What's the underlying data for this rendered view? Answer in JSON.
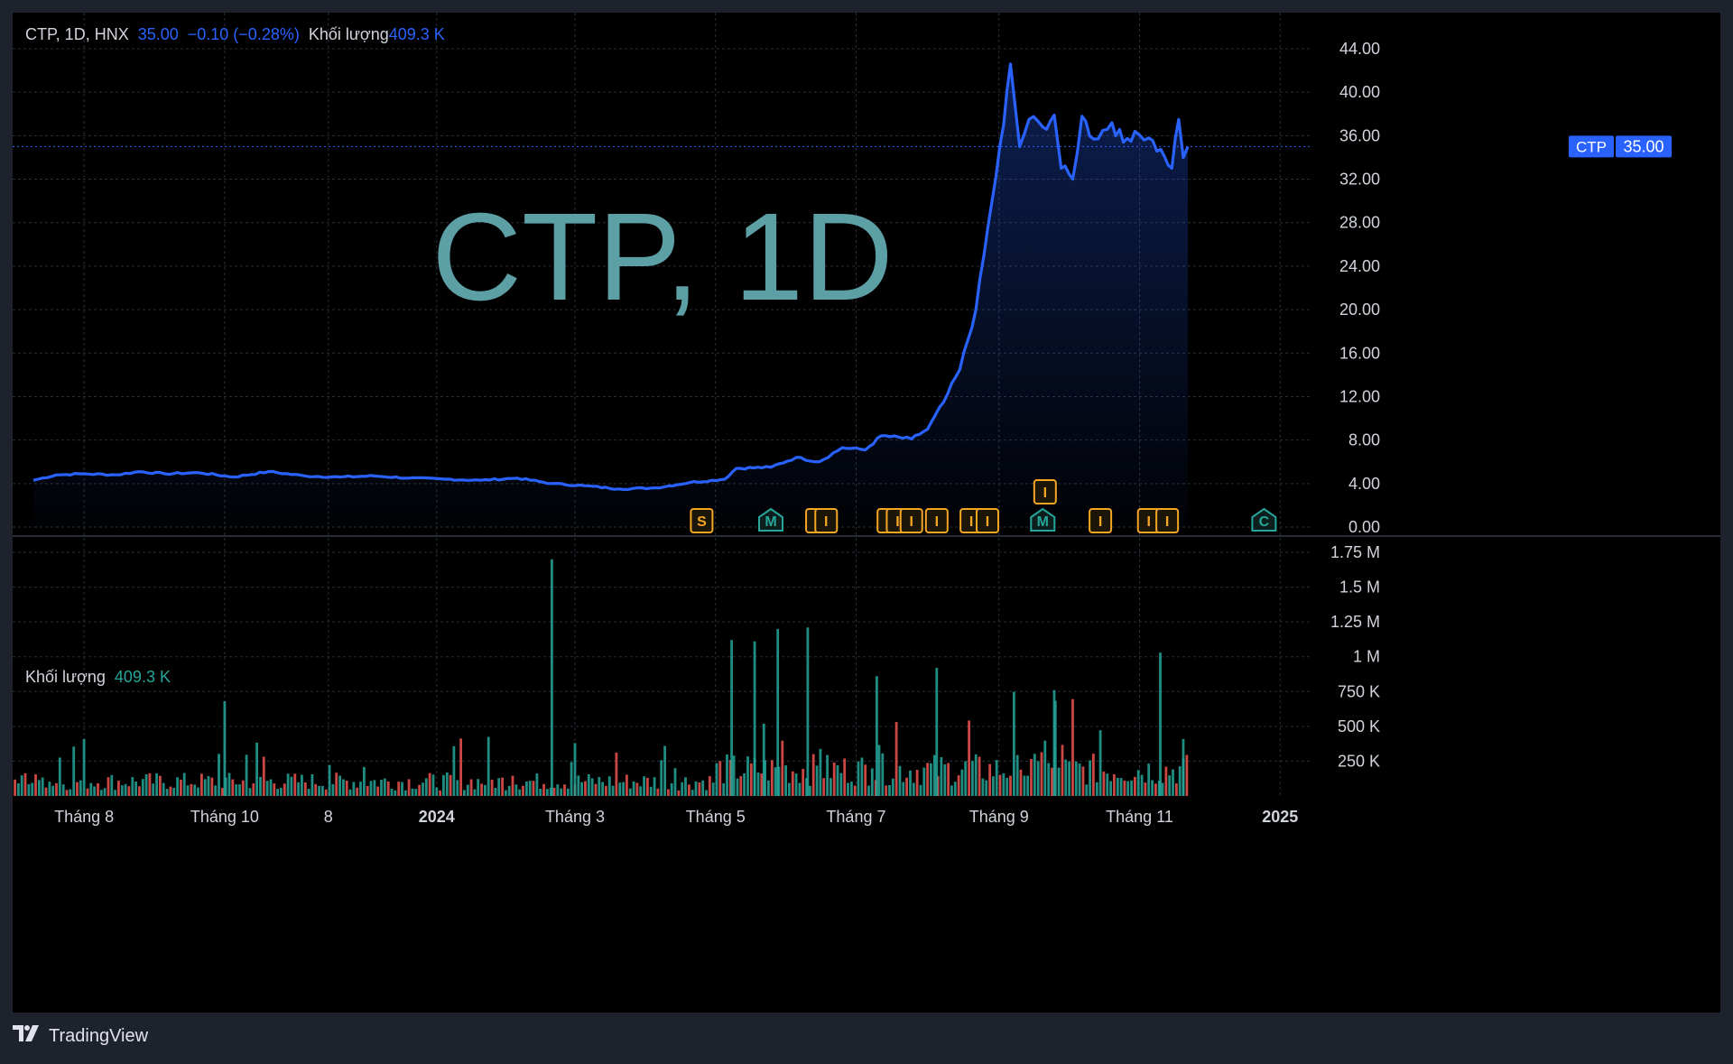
{
  "header": {
    "symbol": "CTP, 1D, HNX",
    "last": "35.00",
    "change": "−0.10 (−0.28%)",
    "volume_label": "Khối lượng",
    "volume_value": "409.3 K"
  },
  "volume_pane": {
    "label": "Khối lượng",
    "value": "409.3 K"
  },
  "watermark": "CTP, 1D",
  "price_tag": {
    "symbol": "CTP",
    "price": "35.00"
  },
  "footer": {
    "brand": "TradingView"
  },
  "colors": {
    "line": "#2962ff",
    "up_volume": "#26a69a",
    "down_volume": "#ef5350",
    "watermark": "#5c9fa5",
    "event_orange": "#f5a623",
    "event_green": "#26a69a"
  },
  "chart_data": {
    "type": "line",
    "title": "CTP, 1D",
    "price_axis": {
      "ticks": [
        "44.00",
        "40.00",
        "36.00",
        "32.00",
        "28.00",
        "24.00",
        "20.00",
        "16.00",
        "12.00",
        "8.00",
        "4.00",
        "0.00"
      ],
      "ylim": [
        0,
        44
      ]
    },
    "volume_axis": {
      "ticks": [
        "1.75 M",
        "1.5 M",
        "1.25 M",
        "1 M",
        "750 K",
        "500 K",
        "250 K"
      ],
      "ylim": [
        0,
        1750000
      ]
    },
    "x_ticks": [
      {
        "label": "Tháng 8",
        "bold": false
      },
      {
        "label": "Tháng 10",
        "bold": false
      },
      {
        "label": "8",
        "bold": false
      },
      {
        "label": "2024",
        "bold": true
      },
      {
        "label": "Tháng 3",
        "bold": false
      },
      {
        "label": "Tháng 5",
        "bold": false
      },
      {
        "label": "Tháng 7",
        "bold": false
      },
      {
        "label": "Tháng 9",
        "bold": false
      },
      {
        "label": "Tháng 11",
        "bold": false
      },
      {
        "label": "2025",
        "bold": true
      }
    ],
    "series": [
      {
        "name": "CTP",
        "values": [
          {
            "x": "2023-07-10",
            "y": 4.3
          },
          {
            "x": "2023-07-20",
            "y": 4.8
          },
          {
            "x": "2023-08-01",
            "y": 4.9
          },
          {
            "x": "2023-08-15",
            "y": 4.8
          },
          {
            "x": "2023-08-25",
            "y": 5.1
          },
          {
            "x": "2023-09-05",
            "y": 4.9
          },
          {
            "x": "2023-09-20",
            "y": 5.0
          },
          {
            "x": "2023-10-05",
            "y": 4.6
          },
          {
            "x": "2023-10-20",
            "y": 5.1
          },
          {
            "x": "2023-11-05",
            "y": 4.7
          },
          {
            "x": "2023-11-20",
            "y": 4.6
          },
          {
            "x": "2023-12-05",
            "y": 4.7
          },
          {
            "x": "2023-12-20",
            "y": 4.5
          },
          {
            "x": "2024-01-05",
            "y": 4.4
          },
          {
            "x": "2024-01-20",
            "y": 4.3
          },
          {
            "x": "2024-02-05",
            "y": 4.5
          },
          {
            "x": "2024-02-20",
            "y": 4.0
          },
          {
            "x": "2024-03-05",
            "y": 3.8
          },
          {
            "x": "2024-03-20",
            "y": 3.5
          },
          {
            "x": "2024-04-05",
            "y": 3.6
          },
          {
            "x": "2024-04-20",
            "y": 4.1
          },
          {
            "x": "2024-05-05",
            "y": 4.4
          },
          {
            "x": "2024-05-10",
            "y": 5.4
          },
          {
            "x": "2024-05-25",
            "y": 5.5
          },
          {
            "x": "2024-06-05",
            "y": 6.4
          },
          {
            "x": "2024-06-15",
            "y": 6.0
          },
          {
            "x": "2024-06-25",
            "y": 7.3
          },
          {
            "x": "2024-07-05",
            "y": 7.1
          },
          {
            "x": "2024-07-12",
            "y": 8.4
          },
          {
            "x": "2024-07-25",
            "y": 8.1
          },
          {
            "x": "2024-08-01",
            "y": 9.0
          },
          {
            "x": "2024-08-08",
            "y": 11.5
          },
          {
            "x": "2024-08-15",
            "y": 14.5
          },
          {
            "x": "2024-08-22",
            "y": 20.0
          },
          {
            "x": "2024-08-29",
            "y": 30.0
          },
          {
            "x": "2024-09-03",
            "y": 37.0
          },
          {
            "x": "2024-09-06",
            "y": 42.6
          },
          {
            "x": "2024-09-10",
            "y": 35.0
          },
          {
            "x": "2024-09-14",
            "y": 37.5
          },
          {
            "x": "2024-09-20",
            "y": 36.8
          },
          {
            "x": "2024-09-25",
            "y": 37.9
          },
          {
            "x": "2024-09-28",
            "y": 33.0
          },
          {
            "x": "2024-10-03",
            "y": 32.0
          },
          {
            "x": "2024-10-07",
            "y": 37.8
          },
          {
            "x": "2024-10-12",
            "y": 35.7
          },
          {
            "x": "2024-10-20",
            "y": 37.2
          },
          {
            "x": "2024-10-25",
            "y": 35.4
          },
          {
            "x": "2024-10-30",
            "y": 36.4
          },
          {
            "x": "2024-11-05",
            "y": 35.8
          },
          {
            "x": "2024-11-12",
            "y": 34.0
          },
          {
            "x": "2024-11-15",
            "y": 33.0
          },
          {
            "x": "2024-11-18",
            "y": 37.5
          },
          {
            "x": "2024-11-20",
            "y": 34.0
          },
          {
            "x": "2024-11-22",
            "y": 35.0
          }
        ]
      },
      {
        "name": "Khối lượng",
        "values": [
          {
            "x": "2023-10-01",
            "y": 680000
          },
          {
            "x": "2024-02-20",
            "y": 1700000
          },
          {
            "x": "2024-03-01",
            "y": 380000
          },
          {
            "x": "2024-05-08",
            "y": 1120000
          },
          {
            "x": "2024-05-18",
            "y": 1110000
          },
          {
            "x": "2024-05-22",
            "y": 520000
          },
          {
            "x": "2024-05-28",
            "y": 1200000
          },
          {
            "x": "2024-06-10",
            "y": 1210000
          },
          {
            "x": "2024-07-10",
            "y": 860000
          },
          {
            "x": "2024-08-05",
            "y": 920000
          },
          {
            "x": "2024-09-25",
            "y": 760000
          },
          {
            "x": "2024-11-10",
            "y": 1030000
          },
          {
            "x": "2024-11-20",
            "y": 409300
          }
        ]
      }
    ],
    "events": [
      {
        "label": "S",
        "shape": "box",
        "color": "orange"
      },
      {
        "label": "M",
        "shape": "pentagon",
        "color": "green"
      },
      {
        "label": "I",
        "shape": "box",
        "color": "orange"
      },
      {
        "label": "I",
        "shape": "box",
        "color": "orange"
      },
      {
        "label": "I",
        "shape": "box",
        "color": "orange"
      },
      {
        "label": "I",
        "shape": "box",
        "color": "orange"
      },
      {
        "label": "I",
        "shape": "box",
        "color": "orange"
      },
      {
        "label": "I",
        "shape": "box",
        "color": "orange"
      },
      {
        "label": "I",
        "shape": "box",
        "color": "orange"
      },
      {
        "label": "I",
        "shape": "box",
        "color": "orange"
      },
      {
        "label": "M",
        "shape": "pentagon",
        "color": "green"
      },
      {
        "label": "I",
        "shape": "box",
        "color": "orange"
      },
      {
        "label": "I",
        "shape": "box",
        "color": "orange"
      },
      {
        "label": "I",
        "shape": "box",
        "color": "orange"
      },
      {
        "label": "C",
        "shape": "pentagon",
        "color": "green"
      },
      {
        "label": "I",
        "shape": "box",
        "color": "orange"
      }
    ]
  }
}
